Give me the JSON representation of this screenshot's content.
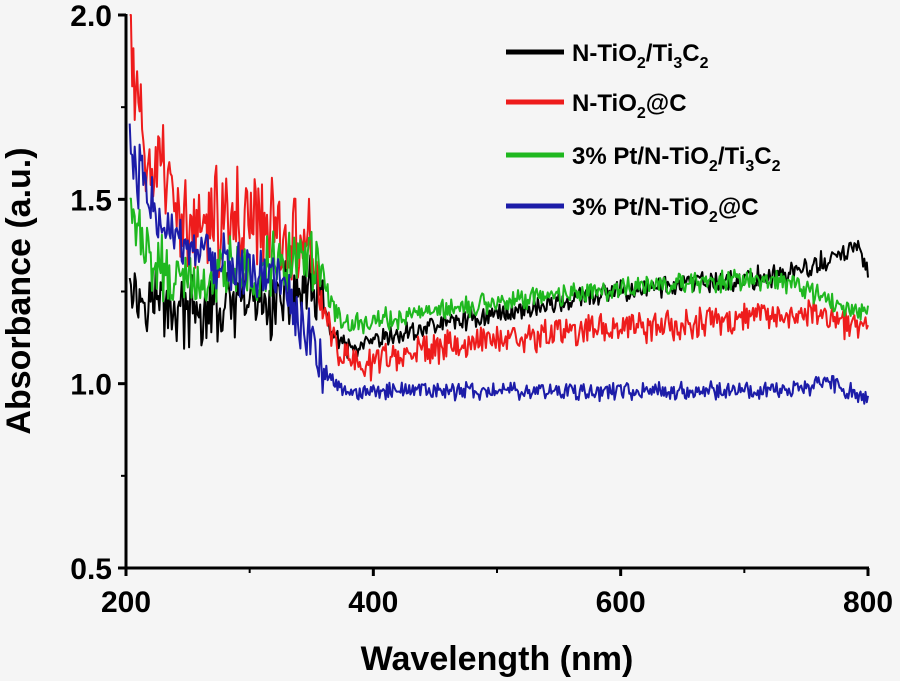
{
  "chart_data": {
    "type": "line",
    "xlabel": "Wavelength (nm)",
    "ylabel": "Absorbance (a.u.)",
    "xlim": [
      200,
      800
    ],
    "ylim": [
      0.5,
      2.0
    ],
    "x_ticks": [
      "200",
      "400",
      "600",
      "800"
    ],
    "y_ticks": [
      "0.5",
      "1.0",
      "1.5",
      "2.0"
    ],
    "legend_position": "top-right",
    "grid": false,
    "series": [
      {
        "name": "N-TiO2/Ti3C2",
        "label_parts": [
          [
            "N-TiO",
            "n"
          ],
          [
            "2",
            "sub"
          ],
          [
            "/Ti",
            "n"
          ],
          [
            "3",
            "sub"
          ],
          [
            "C",
            "n"
          ],
          [
            "2",
            "sub"
          ]
        ],
        "color": "#000000",
        "x": [
          203,
          206,
          210,
          215,
          220,
          230,
          240,
          260,
          280,
          300,
          320,
          340,
          355,
          365,
          375,
          385,
          400,
          420,
          450,
          500,
          550,
          600,
          650,
          700,
          750,
          780,
          790,
          800
        ],
        "y": [
          1.35,
          1.28,
          1.22,
          1.26,
          1.24,
          1.22,
          1.2,
          1.18,
          1.2,
          1.22,
          1.21,
          1.25,
          1.24,
          1.15,
          1.1,
          1.09,
          1.11,
          1.13,
          1.16,
          1.19,
          1.22,
          1.25,
          1.27,
          1.28,
          1.31,
          1.35,
          1.38,
          1.3
        ],
        "noise": 0.025
      },
      {
        "name": "N-TiO2@C",
        "label_parts": [
          [
            "N-TiO",
            "n"
          ],
          [
            "2",
            "sub"
          ],
          [
            "@C",
            "n"
          ]
        ],
        "color": "#ee1c1c",
        "x": [
          203,
          207,
          212,
          216,
          220,
          230,
          240,
          255,
          270,
          290,
          310,
          325,
          340,
          350,
          360,
          370,
          380,
          395,
          410,
          450,
          500,
          550,
          600,
          650,
          700,
          750,
          785,
          800
        ],
        "y": [
          1.95,
          1.8,
          1.7,
          1.62,
          1.6,
          1.55,
          1.45,
          1.4,
          1.44,
          1.45,
          1.44,
          1.42,
          1.42,
          1.38,
          1.2,
          1.09,
          1.06,
          1.05,
          1.07,
          1.1,
          1.12,
          1.14,
          1.15,
          1.16,
          1.18,
          1.2,
          1.16,
          1.18
        ],
        "noise": 0.035
      },
      {
        "name": "3% Pt/N-TiO2/Ti3C2",
        "label_parts": [
          [
            "3%  Pt/N-TiO",
            "n"
          ],
          [
            "2",
            "sub"
          ],
          [
            "/Ti",
            "n"
          ],
          [
            "3",
            "sub"
          ],
          [
            "C",
            "n"
          ],
          [
            "2",
            "sub"
          ]
        ],
        "color": "#1fb81f",
        "x": [
          203,
          207,
          212,
          216,
          220,
          230,
          240,
          260,
          280,
          300,
          320,
          335,
          345,
          355,
          365,
          375,
          390,
          420,
          450,
          500,
          550,
          600,
          650,
          700,
          740,
          770,
          790,
          800
        ],
        "y": [
          1.55,
          1.45,
          1.4,
          1.38,
          1.33,
          1.3,
          1.28,
          1.27,
          1.3,
          1.3,
          1.32,
          1.33,
          1.34,
          1.35,
          1.22,
          1.17,
          1.16,
          1.18,
          1.2,
          1.22,
          1.24,
          1.26,
          1.27,
          1.28,
          1.27,
          1.22,
          1.2,
          1.18
        ],
        "noise": 0.025
      },
      {
        "name": "3% Pt/N-TiO2@C",
        "label_parts": [
          [
            "3%  Pt/N-TiO",
            "n"
          ],
          [
            "2",
            "sub"
          ],
          [
            "@C",
            "n"
          ]
        ],
        "color": "#1c1ca8",
        "x": [
          203,
          206,
          210,
          215,
          220,
          230,
          240,
          260,
          280,
          300,
          320,
          335,
          350,
          360,
          370,
          380,
          400,
          450,
          500,
          550,
          600,
          650,
          700,
          750,
          770,
          790,
          800
        ],
        "y": [
          1.7,
          1.6,
          1.55,
          1.6,
          1.5,
          1.45,
          1.38,
          1.33,
          1.32,
          1.3,
          1.28,
          1.22,
          1.12,
          1.03,
          1.0,
          0.97,
          0.98,
          0.98,
          0.98,
          0.98,
          0.98,
          0.98,
          0.98,
          0.99,
          1.0,
          0.97,
          0.96
        ],
        "noise": 0.02
      }
    ]
  }
}
